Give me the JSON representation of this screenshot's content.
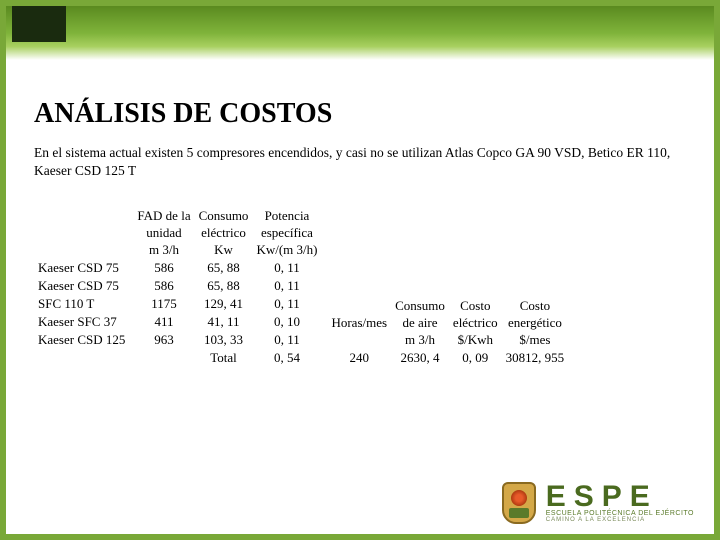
{
  "header": {
    "title": "ANÁLISIS DE COSTOS",
    "intro": "En el sistema actual existen 5 compresores encendidos, y casi no se utilizan Atlas Copco GA 90 VSD,  Betico ER 110,  Kaeser CSD 125 T"
  },
  "table1": {
    "headers": {
      "col1": {
        "l1": "FAD de la",
        "l2": "unidad",
        "l3": "m 3/h"
      },
      "col2": {
        "l1": "Consumo",
        "l2": "eléctrico",
        "l3": "Kw"
      },
      "col3": {
        "l1": "Potencia",
        "l2": "específica",
        "l3": "Kw/(m 3/h)"
      }
    },
    "rows": [
      {
        "label": "Kaeser CSD 75",
        "fad": "586",
        "cons": "65, 88",
        "pot": "0, 11"
      },
      {
        "label": "Kaeser CSD 75",
        "fad": "586",
        "cons": "65, 88",
        "pot": "0, 11"
      },
      {
        "label": "SFC 110 T",
        "fad": "1175",
        "cons": "129, 41",
        "pot": "0, 11"
      },
      {
        "label": "Kaeser  SFC 37",
        "fad": "411",
        "cons": "41, 11",
        "pot": "0, 10"
      },
      {
        "label": "Kaeser CSD 125",
        "fad": "963",
        "cons": "103, 33",
        "pot": "0, 11"
      }
    ],
    "total": {
      "label": "Total",
      "pot": "0, 54"
    }
  },
  "table2": {
    "headers": {
      "col1": {
        "l1": "",
        "l2": "Horas/mes",
        "l3": ""
      },
      "col2": {
        "l1": "Consumo",
        "l2": "de aire",
        "l3": "m 3/h"
      },
      "col3": {
        "l1": "Costo",
        "l2": "eléctrico",
        "l3": "$/Kwh"
      },
      "col4": {
        "l1": "Costo",
        "l2": "energético",
        "l3": "$/mes"
      }
    },
    "row": {
      "horas": "240",
      "consumo": "2630, 4",
      "costo_e": "0, 09",
      "costo_en": "30812, 955"
    }
  },
  "logo": {
    "main": "ESPE",
    "sub": "ESCUELA POLITÉCNICA DEL EJÉRCITO",
    "tag": "CAMINO A LA EXCELENCIA"
  },
  "colors": {
    "brand_green": "#79a838",
    "dark_green": "#4a6a1f"
  }
}
